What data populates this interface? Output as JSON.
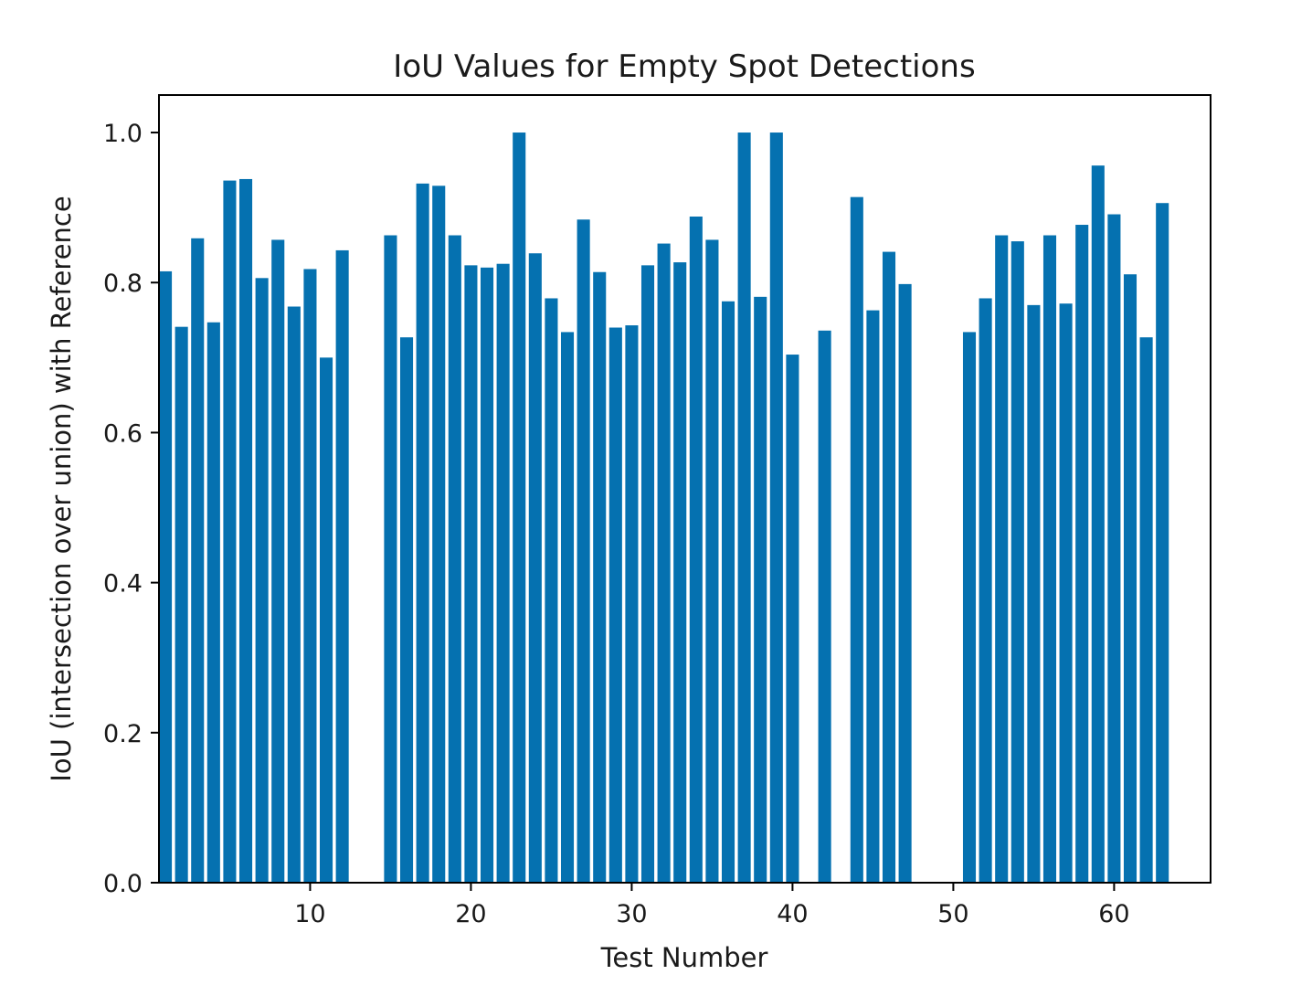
{
  "chart_data": {
    "type": "bar",
    "title": "IoU Values for Empty Spot Detections",
    "xlabel": "Test Number",
    "ylabel": "IoU (intersection over union) with Reference",
    "xlim": [
      0.6,
      66
    ],
    "ylim": [
      0,
      1.05
    ],
    "xticks": [
      10,
      20,
      30,
      40,
      50,
      60
    ],
    "yticks": [
      0.0,
      0.2,
      0.4,
      0.6,
      0.8,
      1.0
    ],
    "grid": false,
    "bar_color": "#0571b0",
    "x": [
      1,
      2,
      3,
      4,
      5,
      6,
      7,
      8,
      9,
      10,
      11,
      12,
      15,
      16,
      17,
      18,
      19,
      20,
      21,
      22,
      23,
      24,
      25,
      26,
      27,
      28,
      29,
      30,
      31,
      32,
      33,
      34,
      35,
      36,
      37,
      38,
      39,
      40,
      42,
      44,
      45,
      46,
      47,
      51,
      52,
      53,
      54,
      55,
      56,
      57,
      58,
      59,
      60,
      61,
      62,
      63
    ],
    "values": [
      0.815,
      0.741,
      0.859,
      0.747,
      0.936,
      0.938,
      0.806,
      0.857,
      0.768,
      0.818,
      0.7,
      0.843,
      0.863,
      0.727,
      0.932,
      0.929,
      0.863,
      0.823,
      0.82,
      0.825,
      1.0,
      0.839,
      0.779,
      0.734,
      0.884,
      0.814,
      0.74,
      0.743,
      0.823,
      0.852,
      0.827,
      0.888,
      0.857,
      0.775,
      1.0,
      0.781,
      1.0,
      0.704,
      0.736,
      0.914,
      0.763,
      0.841,
      0.798,
      0.734,
      0.779,
      0.863,
      0.855,
      0.77,
      0.863,
      0.772,
      0.877,
      0.956,
      0.891,
      0.811,
      0.727,
      0.906
    ]
  }
}
